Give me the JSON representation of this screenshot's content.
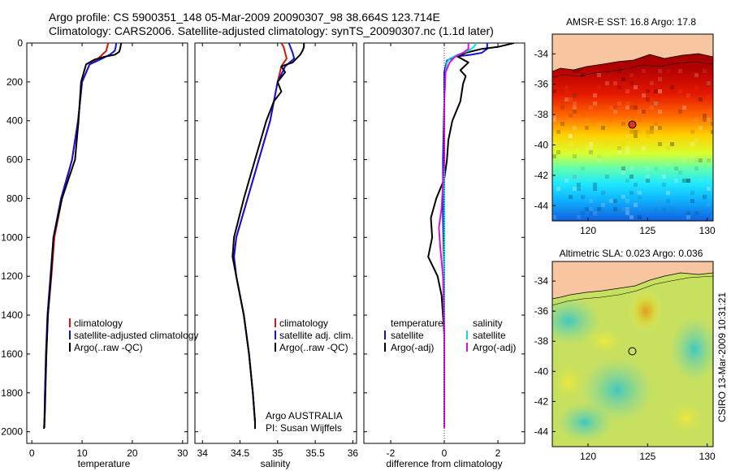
{
  "header": {
    "line1": "Argo profile: CS 5900351_148 05-Mar-2009 20090307_98 38.664S 123.714E",
    "line2": "Climatology: CARS2006. Satellite-adjusted climatology: synTS_20090307.nc (1.1d later)"
  },
  "colors": {
    "climatology": "#dd1111",
    "satellite": "#1111dd",
    "argo": "#000000",
    "sal_satellite": "#11dddd",
    "sal_argo": "#dd11dd",
    "land": "#f7c6a0"
  },
  "chart_data": [
    {
      "type": "line",
      "xlabel": "temperature",
      "ylabel": "",
      "xlim": [
        -1,
        31
      ],
      "ylim": [
        2060,
        0
      ],
      "y_reversed": true,
      "xticks": [
        "0",
        "10",
        "20",
        "30"
      ],
      "yticks": [
        "0",
        "200",
        "400",
        "600",
        "800",
        "1000",
        "1200",
        "1400",
        "1600",
        "1800",
        "2000"
      ],
      "legend": [
        "climatology",
        "satellite-adjusted climatology",
        "Argo(..raw -QC)"
      ],
      "legend_placement": "lower-right",
      "series": [
        {
          "name": "climatology",
          "color": "#dd1111",
          "x": [
            15.2,
            15.0,
            14.8,
            14.0,
            13.2,
            11.5,
            10.0,
            9.2,
            8.0,
            6.0,
            4.5,
            3.9,
            3.2,
            2.9,
            2.6,
            2.5,
            2.5
          ],
          "y": [
            0,
            20,
            40,
            60,
            80,
            110,
            200,
            400,
            600,
            800,
            1000,
            1200,
            1400,
            1600,
            1800,
            1950,
            1980
          ]
        },
        {
          "name": "satellite-adjusted climatology",
          "color": "#1111dd",
          "x": [
            16.8,
            16.7,
            16.5,
            15.5,
            14.0,
            11.5,
            10.0,
            9.2,
            8.0,
            5.8,
            4.3,
            3.7,
            3.1,
            2.8,
            2.6,
            2.5,
            2.5
          ],
          "y": [
            0,
            20,
            40,
            60,
            80,
            110,
            200,
            400,
            600,
            800,
            1000,
            1200,
            1400,
            1600,
            1800,
            1950,
            1980
          ]
        },
        {
          "name": "Argo(..raw -QC)",
          "color": "#000000",
          "x": [
            17.8,
            17.7,
            17.6,
            17.4,
            16.5,
            14.5,
            12.5,
            10.8,
            9.8,
            9.3,
            8.6,
            6.0,
            4.3,
            3.8,
            3.2,
            2.9,
            2.7,
            2.6,
            2.5,
            2.4
          ],
          "y": [
            0,
            10,
            25,
            45,
            60,
            70,
            85,
            110,
            200,
            400,
            600,
            800,
            1000,
            1200,
            1400,
            1600,
            1800,
            1900,
            1950,
            1985
          ]
        }
      ]
    },
    {
      "type": "line",
      "xlabel": "salinity",
      "ylabel": "",
      "xlim": [
        33.9,
        36.05
      ],
      "ylim": [
        2060,
        0
      ],
      "y_reversed": true,
      "xticks": [
        "34",
        "34.5",
        "35",
        "35.5",
        "36"
      ],
      "legend": [
        "climatology",
        "satellite adj. clim.",
        "Argo(..raw -QC)"
      ],
      "legend_placement": "lower-right",
      "annotations": [
        "Argo AUSTRALIA",
        "PI: Susan Wijffels"
      ],
      "series": [
        {
          "name": "climatology",
          "color": "#dd1111",
          "x": [
            35.05,
            35.08,
            35.1,
            35.12,
            35.05,
            35.0,
            34.9,
            34.75,
            34.6,
            34.45,
            34.42,
            34.45,
            34.55,
            34.62,
            34.67,
            34.7,
            34.7
          ],
          "y": [
            0,
            20,
            50,
            80,
            120,
            200,
            400,
            600,
            800,
            1000,
            1100,
            1200,
            1400,
            1600,
            1800,
            1950,
            1980
          ]
        },
        {
          "name": "satellite adj. clim.",
          "color": "#1111dd",
          "x": [
            35.15,
            35.17,
            35.2,
            35.22,
            35.1,
            35.0,
            34.9,
            34.75,
            34.6,
            34.45,
            34.42,
            34.45,
            34.55,
            34.62,
            34.67,
            34.7,
            34.7
          ],
          "y": [
            0,
            20,
            50,
            80,
            120,
            200,
            400,
            600,
            800,
            1000,
            1100,
            1200,
            1400,
            1600,
            1800,
            1950,
            1980
          ]
        },
        {
          "name": "Argo(..raw -QC)",
          "color": "#000000",
          "x": [
            35.35,
            35.35,
            35.33,
            35.3,
            35.25,
            35.2,
            35.05,
            35.1,
            35.0,
            35.05,
            34.95,
            34.85,
            34.7,
            34.55,
            34.42,
            34.4,
            34.45,
            34.55,
            34.62,
            34.67,
            34.7,
            34.7
          ],
          "y": [
            0,
            20,
            40,
            60,
            80,
            100,
            120,
            150,
            200,
            250,
            300,
            400,
            600,
            800,
            1000,
            1100,
            1200,
            1400,
            1600,
            1800,
            1950,
            1985
          ]
        }
      ]
    },
    {
      "type": "line",
      "xlabel": "difference from climatology",
      "ylabel": "",
      "xlim": [
        -3,
        3
      ],
      "ylim": [
        2060,
        0
      ],
      "y_reversed": true,
      "xticks": [
        "-2",
        "0",
        "2"
      ],
      "legend": [
        "temperature",
        "satellite",
        "Argo(-adj)",
        "salinity",
        "satellite",
        "Argo(-adj)"
      ],
      "legend_placement": "lower",
      "series": [
        {
          "name": "temperature satellite",
          "color": "#1111dd",
          "x": [
            1.6,
            1.6,
            1.4,
            1.0,
            0.4,
            0.1,
            0.0,
            0.0,
            -0.05,
            -0.05,
            0.0,
            0.0,
            0.0,
            0.0
          ],
          "y": [
            0,
            30,
            50,
            60,
            70,
            90,
            150,
            300,
            600,
            900,
            1200,
            1500,
            1800,
            1980
          ]
        },
        {
          "name": "temperature Argo(-adj)",
          "color": "#000000",
          "x": [
            2.6,
            2.0,
            1.4,
            0.8,
            0.5,
            0.9,
            0.6,
            0.8,
            0.7,
            0.6,
            0.3,
            0.15,
            0.1,
            0.0,
            -0.3,
            -0.5,
            -0.45,
            -0.6,
            -0.25,
            -0.1,
            0.0,
            0.0,
            0.0
          ],
          "y": [
            0,
            20,
            30,
            50,
            70,
            100,
            140,
            170,
            210,
            300,
            400,
            500,
            600,
            700,
            800,
            900,
            1000,
            1100,
            1200,
            1300,
            1500,
            1800,
            1980
          ]
        },
        {
          "name": "salinity satellite",
          "color": "#11dddd",
          "x": [
            1.2,
            1.1,
            0.9,
            0.5,
            0.2,
            0.1,
            0.05,
            0.0,
            0.0,
            0.0,
            0.0,
            0.0
          ],
          "y": [
            0,
            20,
            40,
            60,
            80,
            100,
            150,
            300,
            600,
            1000,
            1500,
            1980
          ]
        },
        {
          "name": "salinity Argo(-adj)",
          "color": "#dd11dd",
          "x": [
            0.9,
            0.9,
            0.7,
            0.4,
            0.2,
            0.05,
            0.0,
            0.0,
            -0.1,
            -0.2,
            -0.15,
            -0.05,
            0.0,
            0.0
          ],
          "y": [
            0,
            30,
            50,
            70,
            100,
            150,
            300,
            600,
            850,
            950,
            1050,
            1200,
            1500,
            1980
          ]
        }
      ]
    },
    {
      "type": "heatmap",
      "title": "AMSR-E SST: 16.8 Argo: 17.8",
      "xlim": [
        117,
        130.5
      ],
      "ylim": [
        -45,
        -32.7
      ],
      "xticks": [
        "120",
        "125",
        "130"
      ],
      "yticks": [
        "-34",
        "-36",
        "-38",
        "-40",
        "-42",
        "-44"
      ],
      "marker": {
        "lon": 123.714,
        "lat": -38.664
      }
    },
    {
      "type": "heatmap",
      "title": "Altimetric SLA: 0.023 Argo: 0.036",
      "xlim": [
        117,
        130.5
      ],
      "ylim": [
        -45,
        -32.7
      ],
      "xticks": [
        "120",
        "125",
        "130"
      ],
      "yticks": [
        "-34",
        "-36",
        "-38",
        "-40",
        "-42",
        "-44"
      ],
      "marker": {
        "lon": 123.714,
        "lat": -38.664
      },
      "annotations": [
        "CSIRO 13-Mar-2009 10:31:21"
      ]
    }
  ]
}
